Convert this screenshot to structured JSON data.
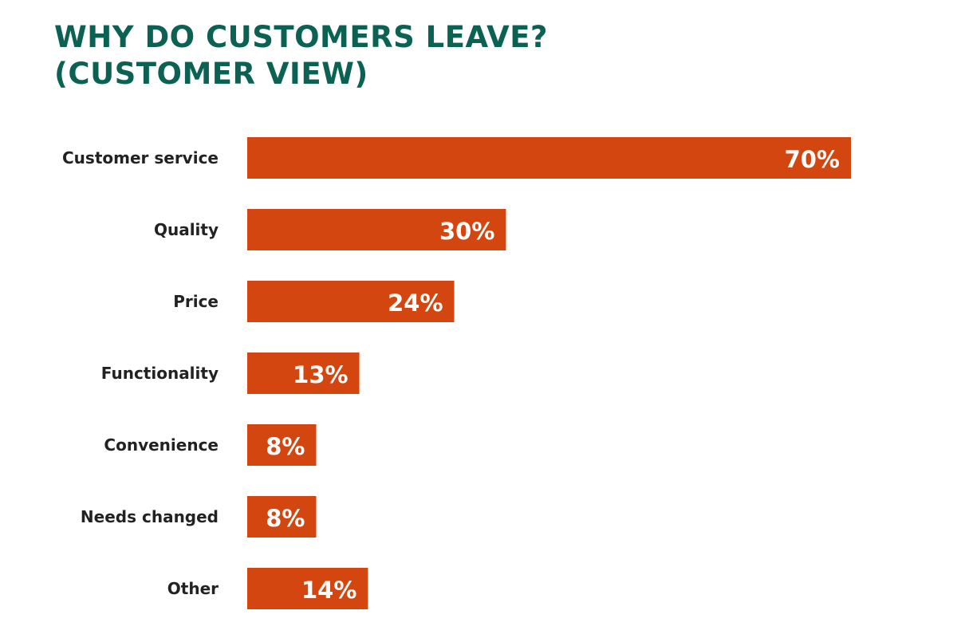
{
  "chart_data": {
    "type": "bar",
    "orientation": "horizontal",
    "title_line1": "WHY DO CUSTOMERS LEAVE?",
    "title_line2": "(CUSTOMER VIEW)",
    "categories": [
      "Customer service",
      "Quality",
      "Price",
      "Functionality",
      "Convenience",
      "Needs changed",
      "Other"
    ],
    "values": [
      70,
      30,
      24,
      13,
      8,
      8,
      14
    ],
    "value_labels": [
      "70%",
      "30%",
      "24%",
      "13%",
      "8%",
      "8%",
      "14%"
    ],
    "unit": "%",
    "bar_color": "#d4460f",
    "title_color": "#0b6152",
    "grid": false,
    "legend": "none"
  }
}
